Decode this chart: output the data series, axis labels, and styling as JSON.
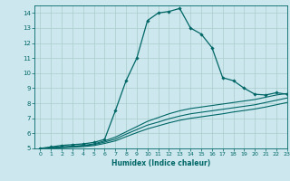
{
  "title": "",
  "xlabel": "Humidex (Indice chaleur)",
  "ylabel": "",
  "bg_color": "#cce8ee",
  "grid_color": "#aacccc",
  "line_color": "#006666",
  "xlim": [
    -0.5,
    23
  ],
  "ylim": [
    5,
    14.5
  ],
  "xticks": [
    0,
    1,
    2,
    3,
    4,
    5,
    6,
    7,
    8,
    9,
    10,
    11,
    12,
    13,
    14,
    15,
    16,
    17,
    18,
    19,
    20,
    21,
    22,
    23
  ],
  "yticks": [
    5,
    6,
    7,
    8,
    9,
    10,
    11,
    12,
    13,
    14
  ],
  "series": [
    {
      "x": [
        0,
        1,
        2,
        3,
        4,
        5,
        6,
        7,
        8,
        9,
        10,
        11,
        12,
        13,
        14,
        15,
        16,
        17,
        18,
        19,
        20,
        21,
        22,
        23
      ],
      "y": [
        5.0,
        5.1,
        5.2,
        5.25,
        5.3,
        5.4,
        5.6,
        7.5,
        9.5,
        11.0,
        13.5,
        14.0,
        14.1,
        14.3,
        13.0,
        12.6,
        11.7,
        9.7,
        9.5,
        9.0,
        8.6,
        8.55,
        8.7,
        8.6
      ],
      "marker": "D",
      "markersize": 1.8,
      "linewidth": 0.9
    },
    {
      "x": [
        0,
        1,
        2,
        3,
        4,
        5,
        6,
        7,
        8,
        9,
        10,
        11,
        12,
        13,
        14,
        15,
        16,
        17,
        18,
        19,
        20,
        21,
        22,
        23
      ],
      "y": [
        5.0,
        5.05,
        5.1,
        5.15,
        5.2,
        5.3,
        5.5,
        5.75,
        6.1,
        6.45,
        6.8,
        7.05,
        7.3,
        7.5,
        7.65,
        7.75,
        7.85,
        7.95,
        8.05,
        8.15,
        8.25,
        8.4,
        8.55,
        8.65
      ],
      "marker": null,
      "markersize": 0,
      "linewidth": 0.8
    },
    {
      "x": [
        0,
        1,
        2,
        3,
        4,
        5,
        6,
        7,
        8,
        9,
        10,
        11,
        12,
        13,
        14,
        15,
        16,
        17,
        18,
        19,
        20,
        21,
        22,
        23
      ],
      "y": [
        5.0,
        5.04,
        5.08,
        5.12,
        5.17,
        5.25,
        5.42,
        5.62,
        5.95,
        6.25,
        6.55,
        6.75,
        6.97,
        7.15,
        7.3,
        7.4,
        7.5,
        7.6,
        7.7,
        7.8,
        7.9,
        8.05,
        8.2,
        8.35
      ],
      "marker": null,
      "markersize": 0,
      "linewidth": 0.8
    },
    {
      "x": [
        0,
        1,
        2,
        3,
        4,
        5,
        6,
        7,
        8,
        9,
        10,
        11,
        12,
        13,
        14,
        15,
        16,
        17,
        18,
        19,
        20,
        21,
        22,
        23
      ],
      "y": [
        5.0,
        5.02,
        5.05,
        5.08,
        5.12,
        5.19,
        5.33,
        5.5,
        5.78,
        6.05,
        6.3,
        6.5,
        6.7,
        6.87,
        7.0,
        7.1,
        7.2,
        7.3,
        7.42,
        7.52,
        7.62,
        7.75,
        7.9,
        8.05
      ],
      "marker": null,
      "markersize": 0,
      "linewidth": 0.8
    }
  ]
}
